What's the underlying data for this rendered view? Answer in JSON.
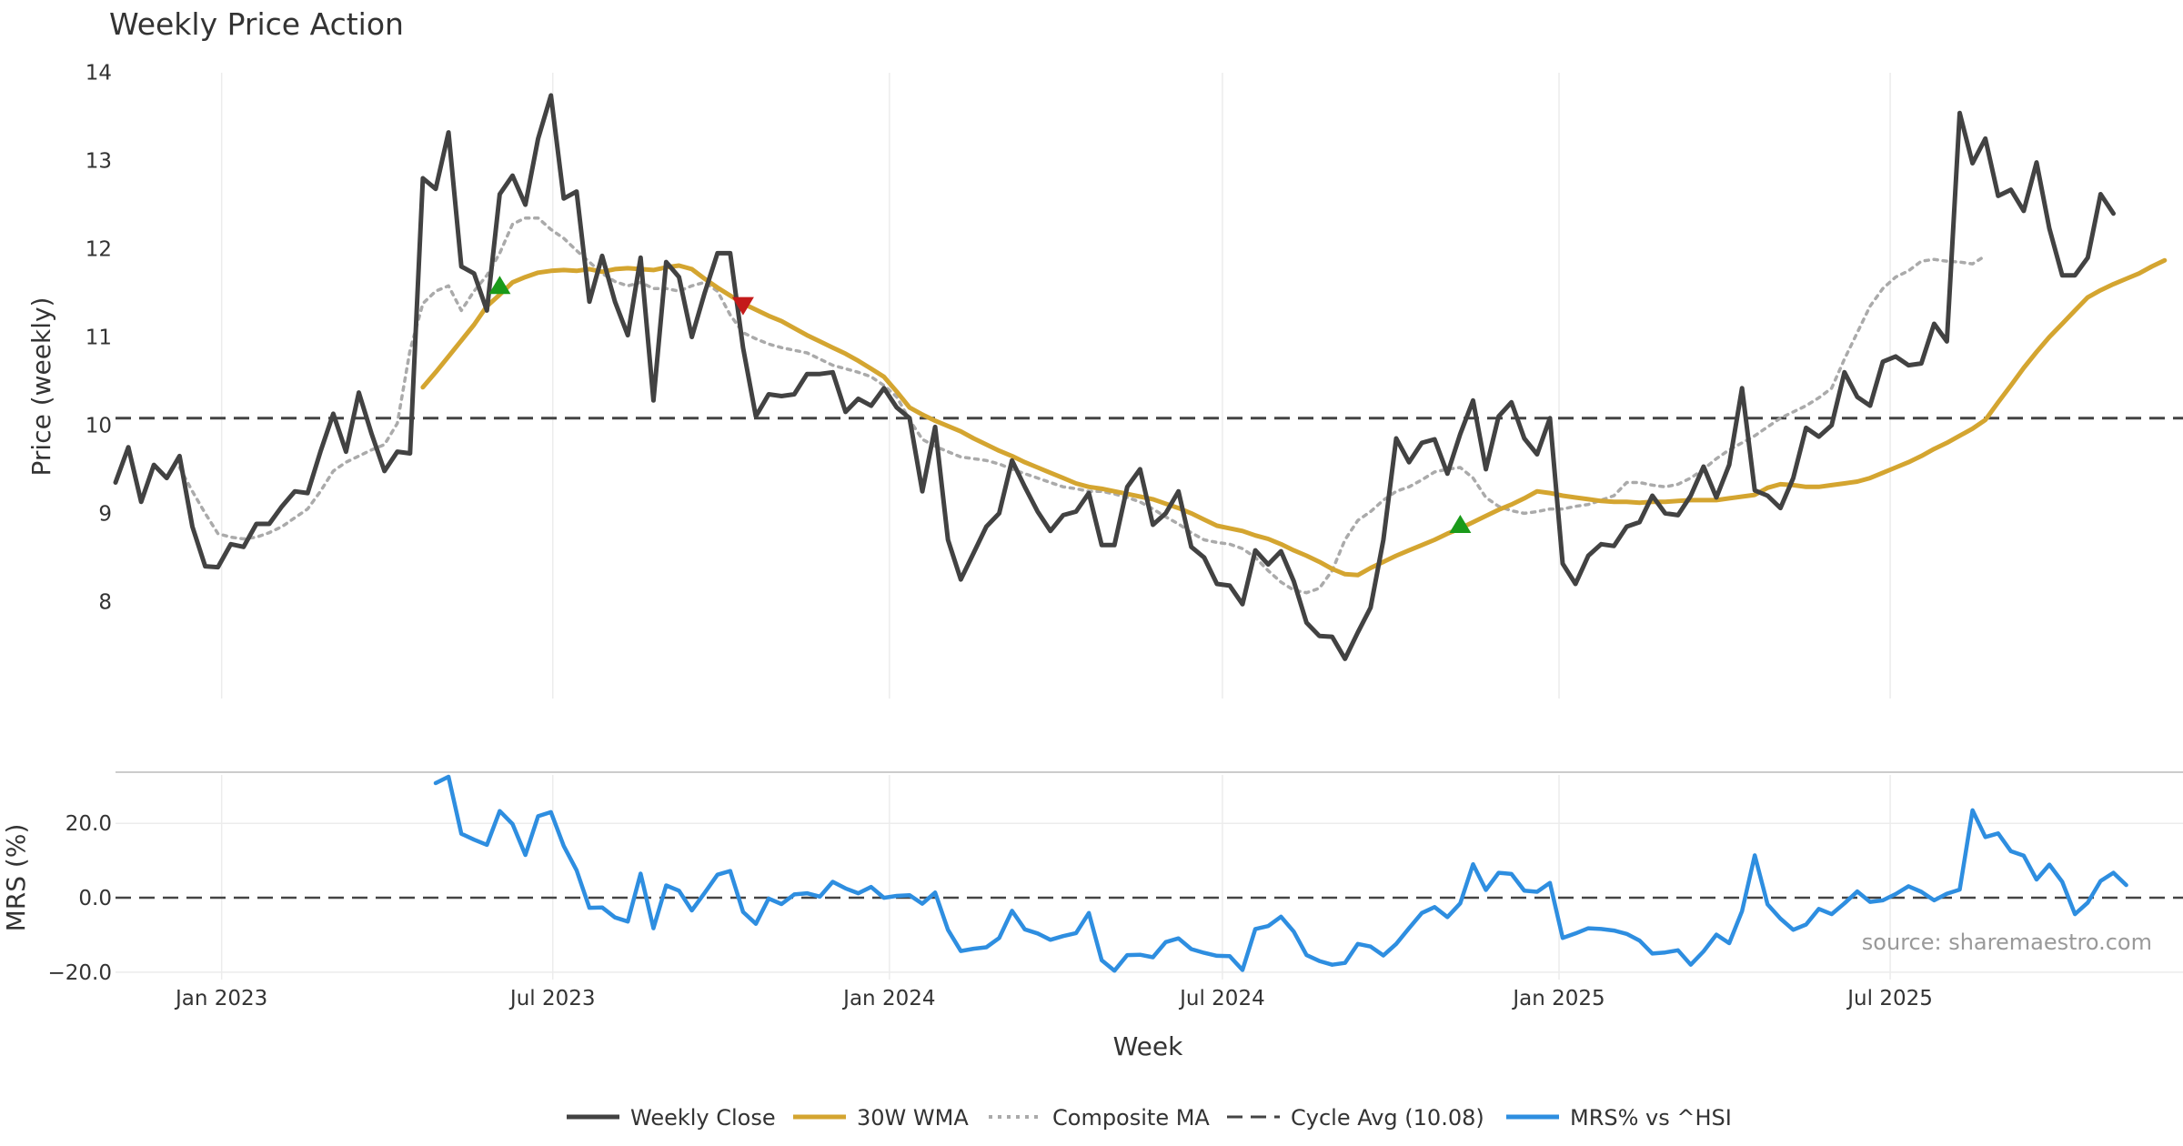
{
  "chart_data": {
    "title": "Weekly Price Action",
    "source": "source: sharemaestro.com",
    "xlabel": "Week",
    "x_start": "2022-11-04",
    "x_ticks": [
      {
        "label": "Jan 2023",
        "date": "2023-01-01"
      },
      {
        "label": "Jul 2023",
        "date": "2023-07-01"
      },
      {
        "label": "Jan 2024",
        "date": "2024-01-01"
      },
      {
        "label": "Jul 2024",
        "date": "2024-07-01"
      },
      {
        "label": "Jan 2025",
        "date": "2025-01-01"
      },
      {
        "label": "Jul 2025",
        "date": "2025-07-01"
      }
    ],
    "price_panel": {
      "type": "line",
      "ylabel": "Price (weekly)",
      "ylim": [
        6.9,
        14.1
      ],
      "yticks": [
        "8",
        "9",
        "10",
        "11",
        "12",
        "13",
        "14"
      ],
      "cycle_avg": 10.08,
      "weekly_close": [
        9.35,
        9.75,
        9.13,
        9.55,
        9.4,
        9.65,
        8.85,
        8.4,
        8.39,
        8.65,
        8.62,
        8.88,
        8.88,
        9.08,
        9.25,
        9.23,
        9.7,
        10.13,
        9.7,
        10.37,
        9.9,
        9.48,
        9.7,
        9.68,
        12.8,
        12.68,
        13.32,
        11.8,
        11.72,
        11.3,
        12.62,
        12.83,
        12.5,
        13.25,
        13.74,
        12.57,
        12.65,
        11.4,
        11.92,
        11.4,
        11.02,
        11.9,
        10.28,
        11.85,
        11.68,
        11.0,
        11.5,
        11.95,
        11.95,
        10.88,
        10.1,
        10.35,
        10.33,
        10.35,
        10.58,
        10.58,
        10.6,
        10.15,
        10.3,
        10.22,
        10.42,
        10.2,
        10.08,
        9.25,
        9.98,
        8.7,
        8.25,
        8.55,
        8.85,
        9.0,
        9.6,
        9.3,
        9.02,
        8.8,
        8.98,
        9.02,
        9.23,
        8.64,
        8.64,
        9.3,
        9.5,
        8.87,
        9.0,
        9.25,
        8.62,
        8.5,
        8.2,
        8.18,
        7.97,
        8.58,
        8.42,
        8.57,
        8.23,
        7.76,
        7.61,
        7.6,
        7.35,
        7.65,
        7.93,
        8.7,
        9.85,
        9.58,
        9.8,
        9.84,
        9.45,
        9.9,
        10.28,
        9.5,
        10.1,
        10.26,
        9.85,
        9.67,
        10.08,
        8.43,
        8.2,
        8.52,
        8.65,
        8.63,
        8.85,
        8.9,
        9.2,
        9.0,
        8.98,
        9.2,
        9.53,
        9.18,
        9.55,
        10.42,
        9.26,
        9.2,
        9.06,
        9.4,
        9.97,
        9.87,
        10.0,
        10.6,
        10.32,
        10.22,
        10.72,
        10.78,
        10.68,
        10.7,
        11.15,
        10.95,
        13.54,
        12.97,
        13.25,
        12.6,
        12.67,
        12.43,
        12.98,
        12.23,
        11.7,
        11.7,
        11.9,
        12.62,
        12.4
      ],
      "wma_30w": {
        "start_index": 24,
        "values": [
          10.43,
          10.6,
          10.78,
          10.96,
          11.14,
          11.35,
          11.48,
          11.62,
          11.68,
          11.73,
          11.75,
          11.76,
          11.75,
          11.77,
          11.74,
          11.77,
          11.78,
          11.77,
          11.76,
          11.79,
          11.81,
          11.77,
          11.66,
          11.56,
          11.47,
          11.38,
          11.31,
          11.24,
          11.18,
          11.1,
          11.02,
          10.95,
          10.88,
          10.81,
          10.73,
          10.64,
          10.55,
          10.38,
          10.2,
          10.12,
          10.05,
          9.99,
          9.93,
          9.85,
          9.78,
          9.71,
          9.65,
          9.58,
          9.52,
          9.46,
          9.4,
          9.34,
          9.3,
          9.28,
          9.25,
          9.22,
          9.19,
          9.16,
          9.11,
          9.06,
          9.0,
          8.93,
          8.86,
          8.83,
          8.8,
          8.75,
          8.71,
          8.65,
          8.58,
          8.52,
          8.45,
          8.37,
          8.31,
          8.3,
          8.38,
          8.45,
          8.52,
          8.58,
          8.64,
          8.7,
          8.77,
          8.83,
          8.9,
          8.97,
          9.04,
          9.1,
          9.17,
          9.25,
          9.23,
          9.2,
          9.18,
          9.16,
          9.14,
          9.13,
          9.13,
          9.12,
          9.13,
          9.13,
          9.14,
          9.15,
          9.15,
          9.15,
          9.17,
          9.19,
          9.21,
          9.29,
          9.33,
          9.32,
          9.3,
          9.3,
          9.32,
          9.34,
          9.36,
          9.4,
          9.46,
          9.52,
          9.58,
          9.65,
          9.73,
          9.8,
          9.88,
          9.96,
          10.06,
          10.26,
          10.45,
          10.65,
          10.83,
          11.0,
          11.15,
          11.3,
          11.45,
          11.53,
          11.6,
          11.66,
          11.72,
          11.8,
          11.87
        ]
      },
      "composite_ma": {
        "start_index": 5,
        "values": [
          9.52,
          9.25,
          9.0,
          8.77,
          8.73,
          8.71,
          8.73,
          8.78,
          8.85,
          8.95,
          9.05,
          9.25,
          9.48,
          9.58,
          9.65,
          9.72,
          9.78,
          10.02,
          10.85,
          11.38,
          11.52,
          11.58,
          11.3,
          11.52,
          11.7,
          11.95,
          12.28,
          12.35,
          12.35,
          12.22,
          12.12,
          11.98,
          11.85,
          11.72,
          11.63,
          11.58,
          11.62,
          11.55,
          11.55,
          11.52,
          11.58,
          11.62,
          11.52,
          11.25,
          11.05,
          10.98,
          10.92,
          10.88,
          10.85,
          10.82,
          10.75,
          10.68,
          10.64,
          10.6,
          10.55,
          10.45,
          10.32,
          10.06,
          9.84,
          9.76,
          9.7,
          9.64,
          9.62,
          9.6,
          9.56,
          9.5,
          9.45,
          9.4,
          9.35,
          9.3,
          9.28,
          9.25,
          9.25,
          9.22,
          9.18,
          9.13,
          9.05,
          8.96,
          8.88,
          8.78,
          8.7,
          8.67,
          8.65,
          8.6,
          8.5,
          8.35,
          8.22,
          8.13,
          8.1,
          8.15,
          8.35,
          8.7,
          8.92,
          9.02,
          9.15,
          9.25,
          9.3,
          9.38,
          9.47,
          9.5,
          9.52,
          9.4,
          9.18,
          9.08,
          9.03,
          9.0,
          9.02,
          9.05,
          9.05,
          9.08,
          9.1,
          9.15,
          9.2,
          9.35,
          9.35,
          9.32,
          9.3,
          9.33,
          9.4,
          9.5,
          9.62,
          9.72,
          9.8,
          9.88,
          9.98,
          10.08,
          10.15,
          10.22,
          10.31,
          10.42,
          10.75,
          11.05,
          11.35,
          11.55,
          11.68,
          11.75,
          11.86,
          11.88,
          11.86,
          11.85,
          11.83,
          11.92
        ]
      },
      "signals": [
        {
          "type": "buy",
          "index": 30,
          "value": 11.58
        },
        {
          "type": "sell",
          "index": 49,
          "value": 11.36
        },
        {
          "type": "buy",
          "index": 105,
          "value": 8.87
        }
      ]
    },
    "mrs_panel": {
      "type": "line",
      "ylabel": "MRS (%)",
      "ylim": [
        -21,
        33
      ],
      "yticks": [
        "−20.0",
        "0.0",
        "20.0"
      ],
      "series": {
        "name": "MRS% vs ^HSI",
        "start_index": 25,
        "values": [
          30.8,
          32.5,
          17.2,
          15.6,
          14.2,
          23.3,
          19.8,
          11.5,
          21.9,
          23.0,
          13.9,
          7.4,
          -2.7,
          -2.6,
          -5.3,
          -6.4,
          6.5,
          -8.2,
          3.3,
          1.9,
          -3.4,
          1.3,
          6.2,
          7.2,
          -3.8,
          -7.0,
          -0.2,
          -1.7,
          0.9,
          1.2,
          0.3,
          4.3,
          2.5,
          1.2,
          2.9,
          0.0,
          0.5,
          0.7,
          -1.6,
          1.4,
          -8.6,
          -14.3,
          -13.7,
          -13.3,
          -10.8,
          -3.5,
          -8.5,
          -9.6,
          -11.3,
          -10.3,
          -9.5,
          -4.1,
          -16.8,
          -19.6,
          -15.4,
          -15.3,
          -16.0,
          -11.9,
          -10.9,
          -13.8,
          -14.8,
          -15.6,
          -15.7,
          -19.4,
          -8.4,
          -7.6,
          -5.1,
          -9.1,
          -15.4,
          -17.0,
          -18.0,
          -17.5,
          -12.4,
          -13.1,
          -15.5,
          -12.4,
          -8.2,
          -4.1,
          -2.5,
          -5.2,
          -1.5,
          9.0,
          2.1,
          6.7,
          6.4,
          1.9,
          1.6,
          4.0,
          -10.8,
          -9.6,
          -8.2,
          -8.4,
          -8.8,
          -9.7,
          -11.5,
          -15.0,
          -14.7,
          -14.1,
          -18.0,
          -14.4,
          -9.9,
          -12.2,
          -3.6,
          11.4,
          -1.8,
          -5.6,
          -8.6,
          -7.2,
          -3.0,
          -4.4,
          -1.5,
          1.7,
          -1.1,
          -0.7,
          1.0,
          3.1,
          1.6,
          -0.7,
          1.1,
          2.2,
          23.5,
          16.3,
          17.3,
          12.5,
          11.3,
          4.9,
          8.9,
          4.3,
          -4.4,
          -1.3,
          4.5,
          6.7,
          3.4
        ]
      }
    },
    "legend": [
      {
        "label": "Weekly Close",
        "color": "#424242",
        "style": "solid"
      },
      {
        "label": "30W WMA",
        "color": "#d4a530",
        "style": "solid"
      },
      {
        "label": "Composite MA",
        "color": "#aaaaaa",
        "style": "dotted"
      },
      {
        "label": "Cycle Avg (10.08)",
        "color": "#444444",
        "style": "dashed"
      },
      {
        "label": "MRS% vs ^HSI",
        "color": "#2e8ee0",
        "style": "solid"
      }
    ],
    "colors": {
      "close": "#424242",
      "wma": "#d4a530",
      "composite": "#aaaaaa",
      "cycle": "#444444",
      "mrs": "#2e8ee0",
      "buy": "#1a9a1a",
      "sell": "#c41a1a",
      "grid": "#ececec"
    }
  }
}
